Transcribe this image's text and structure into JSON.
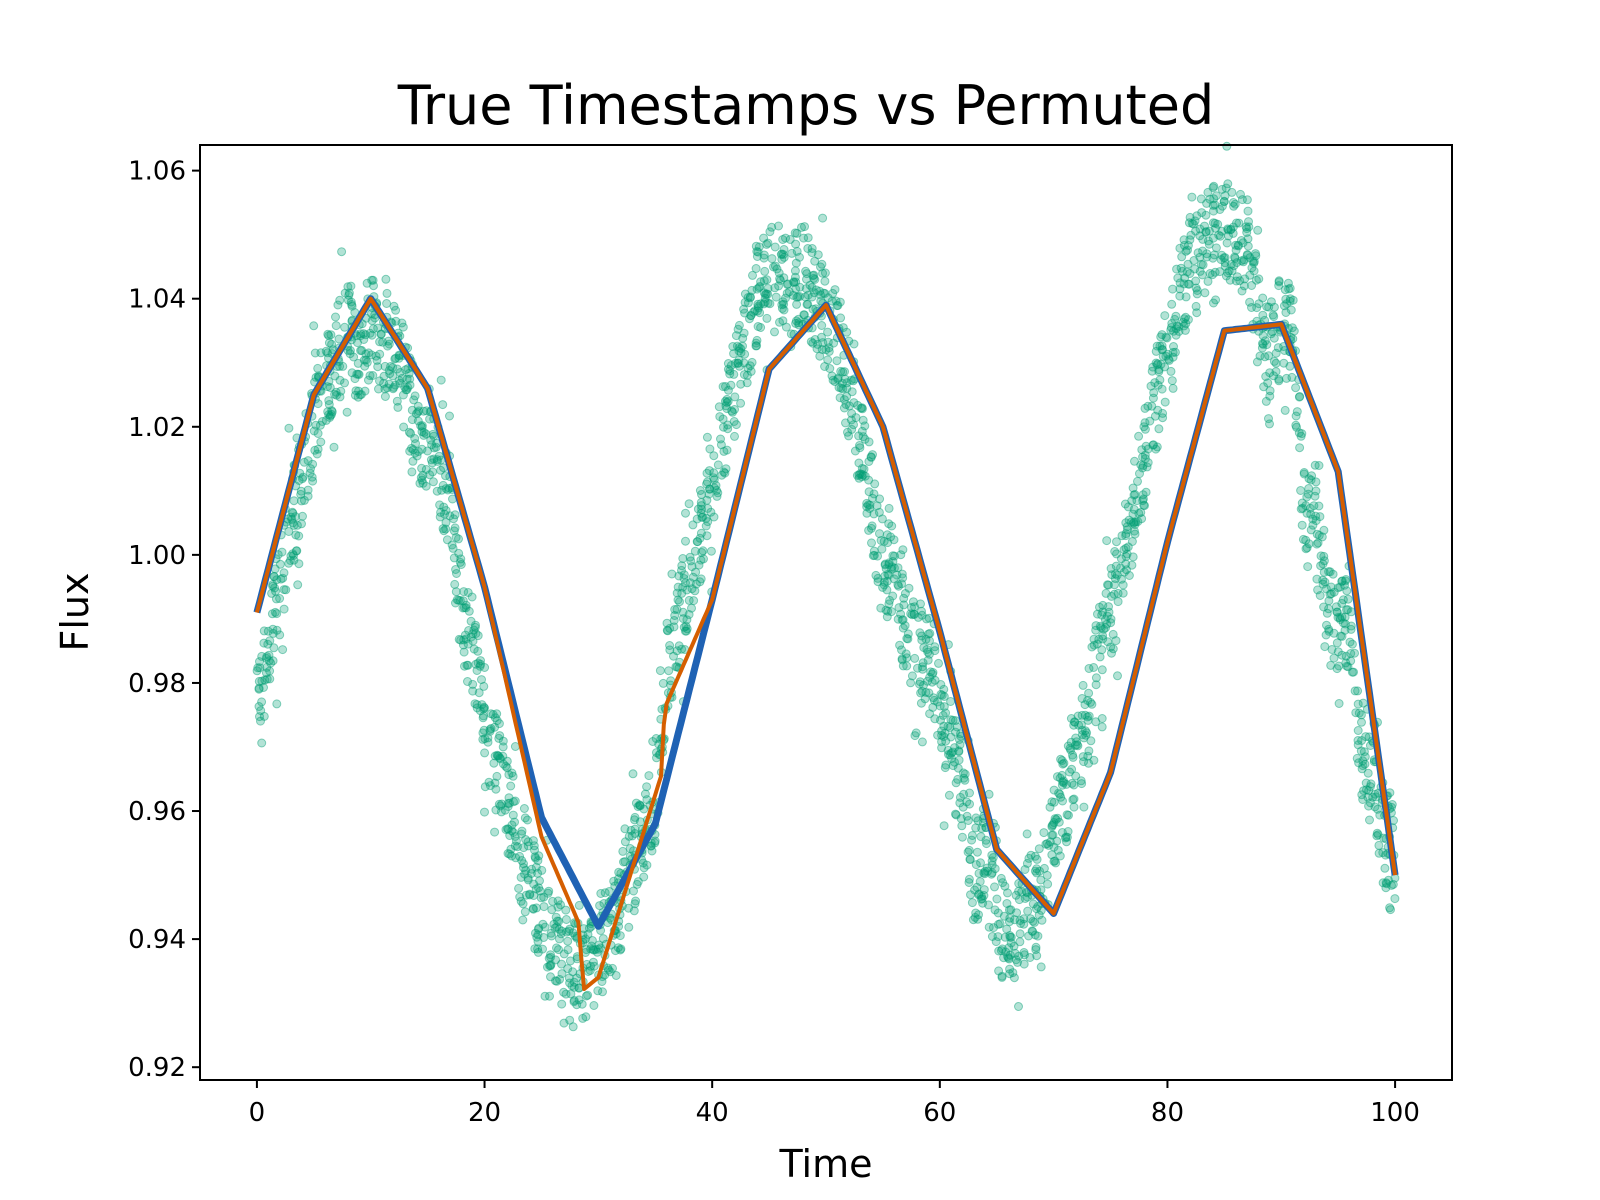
{
  "chart_data": {
    "type": "scatter",
    "title": "True Timestamps vs Permuted",
    "xlabel": "Time",
    "ylabel": "Flux",
    "xlim": [
      -5,
      105
    ],
    "ylim": [
      0.918,
      1.064
    ],
    "xticks": [
      0,
      20,
      40,
      60,
      80,
      100
    ],
    "yticks": [
      0.92,
      0.94,
      0.96,
      0.98,
      1.0,
      1.02,
      1.04,
      1.06
    ],
    "xtick_labels": [
      "0",
      "20",
      "40",
      "60",
      "80",
      "100"
    ],
    "ytick_labels": [
      "0.92",
      "0.94",
      "0.96",
      "0.98",
      "1.00",
      "1.02",
      "1.04",
      "1.06"
    ],
    "grid": false,
    "legend": "none",
    "series": [
      {
        "kind": "scatter",
        "color": "#009E73",
        "alpha": 0.3,
        "note_shape": "noisy sinusoid, amplitude ~0.05, period ~37.7, centered at 0.991",
        "x": [
          0,
          1,
          2,
          3,
          4,
          5,
          6,
          7,
          8,
          9,
          10,
          11,
          12,
          13,
          14,
          15,
          16,
          17,
          18,
          19,
          20,
          21,
          22,
          23,
          24,
          25,
          26,
          27,
          28,
          29,
          30,
          31,
          32,
          33,
          34,
          35,
          36,
          37,
          38,
          39,
          40,
          41,
          42,
          43,
          44,
          45,
          46,
          47,
          48,
          49,
          50,
          51,
          52,
          53,
          54,
          55,
          56,
          57,
          58,
          59,
          60,
          61,
          62,
          63,
          64,
          65,
          66,
          67,
          68,
          69,
          70,
          71,
          72,
          73,
          74,
          75,
          76,
          77,
          78,
          79,
          80,
          81,
          82,
          83,
          84,
          85,
          86,
          87,
          88,
          89,
          90,
          91,
          92,
          93,
          94,
          95,
          96,
          97,
          98,
          99,
          100
        ],
        "y": [
          0.975,
          0.985,
          0.995,
          1.005,
          1.012,
          1.02,
          1.027,
          1.031,
          1.036,
          1.03,
          1.036,
          1.032,
          1.034,
          1.027,
          1.02,
          1.018,
          1.014,
          1.008,
          0.99,
          0.986,
          0.972,
          0.968,
          0.961,
          0.955,
          0.95,
          0.944,
          0.94,
          0.937,
          0.935,
          0.934,
          0.939,
          0.941,
          0.946,
          0.951,
          0.957,
          0.962,
          0.982,
          0.989,
          0.996,
          1.003,
          1.01,
          1.019,
          1.026,
          1.034,
          1.04,
          1.045,
          1.044,
          1.042,
          1.044,
          1.04,
          1.036,
          1.034,
          1.026,
          1.018,
          1.009,
          0.998,
          0.997,
          0.989,
          0.985,
          0.984,
          0.976,
          0.969,
          0.963,
          0.95,
          0.952,
          0.943,
          0.94,
          0.943,
          0.945,
          0.948,
          0.955,
          0.962,
          0.97,
          0.974,
          0.985,
          0.99,
          0.998,
          1.007,
          1.015,
          1.024,
          1.031,
          1.04,
          1.045,
          1.048,
          1.05,
          1.052,
          1.049,
          1.048,
          1.036,
          1.032,
          1.035,
          1.035,
          1.006,
          1.005,
          0.99,
          0.989,
          0.988,
          0.97,
          0.968,
          0.956,
          0.953
        ]
      },
      {
        "kind": "line",
        "color": "#1f62b4",
        "note_shape": "true-time sinusoid: 0.991 + 0.0495*sin(2*pi*(t-0)/37.7 + 0.0)",
        "x": [
          0,
          5,
          10,
          15,
          20,
          25,
          30,
          35,
          40,
          45,
          50,
          55,
          60,
          65,
          70,
          75,
          80,
          85,
          90,
          95,
          100
        ],
        "y": [
          0.991,
          1.025,
          1.04,
          1.026,
          0.995,
          0.959,
          0.942,
          0.958,
          0.993,
          1.029,
          1.039,
          1.02,
          0.988,
          0.954,
          0.944,
          0.966,
          1.002,
          1.035,
          1.036,
          1.013,
          0.95
        ]
      },
      {
        "kind": "line",
        "color": "#d55e00",
        "note_shape": "permuted-time model with a discontinuity near t=28.5 and t=35.7",
        "x": [
          0,
          5,
          10,
          15,
          20,
          25,
          28.4,
          28.6,
          30,
          35.6,
          35.8,
          40,
          45,
          50,
          55,
          60,
          65,
          70,
          75,
          80,
          85,
          90,
          95,
          100
        ],
        "y": [
          0.991,
          1.025,
          1.04,
          1.026,
          0.995,
          0.956,
          0.942,
          0.932,
          0.934,
          0.966,
          0.976,
          0.993,
          1.029,
          1.039,
          1.02,
          0.988,
          0.954,
          0.944,
          0.966,
          1.002,
          1.035,
          1.036,
          1.013,
          0.95
        ]
      }
    ]
  }
}
